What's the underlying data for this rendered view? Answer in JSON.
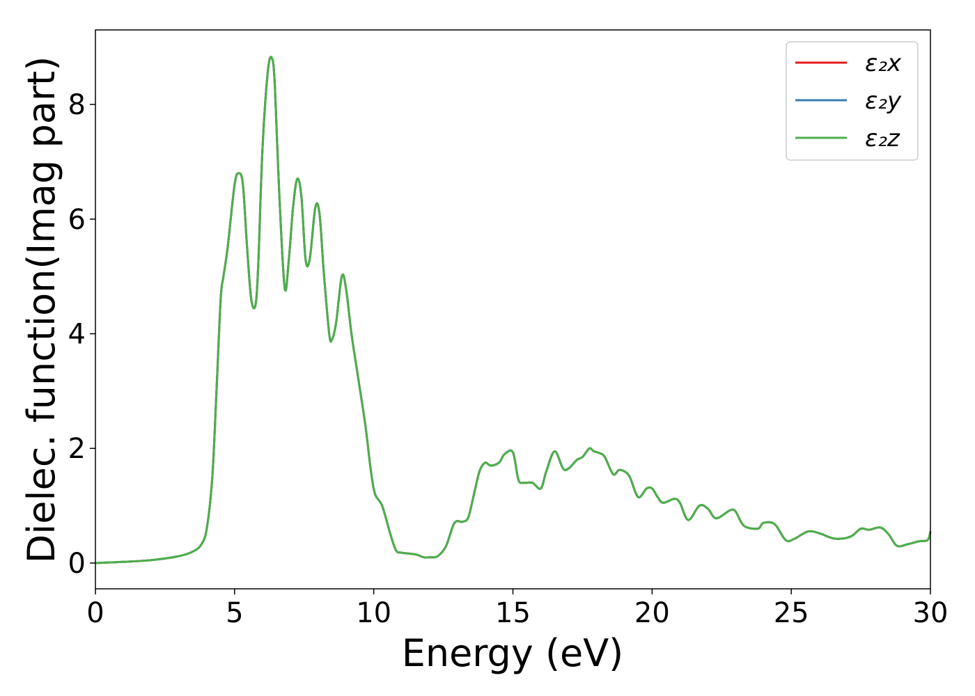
{
  "chart_data": {
    "type": "line",
    "xlabel": "Energy (eV)",
    "ylabel": "Dielec. function(Imag part)",
    "xlim": [
      0,
      30
    ],
    "ylim": [
      -0.45,
      9.3
    ],
    "xticks": [
      0,
      5,
      10,
      15,
      20,
      25,
      30
    ],
    "yticks": [
      0,
      2,
      4,
      6,
      8
    ],
    "grid": false,
    "legend": "top-right",
    "x": [
      0,
      1,
      2,
      3,
      3.5,
      3.8,
      4.0,
      4.2,
      4.35,
      4.5,
      4.6,
      4.75,
      5.0,
      5.15,
      5.3,
      5.45,
      5.6,
      5.75,
      5.85,
      6.0,
      6.2,
      6.35,
      6.45,
      6.6,
      6.8,
      6.95,
      7.1,
      7.25,
      7.4,
      7.55,
      7.7,
      7.9,
      8.05,
      8.2,
      8.4,
      8.5,
      8.65,
      8.85,
      9.0,
      9.2,
      9.45,
      9.7,
      9.9,
      10.05,
      10.3,
      10.6,
      10.8,
      11.0,
      11.5,
      11.8,
      12.0,
      12.3,
      12.6,
      12.9,
      13.2,
      13.4,
      13.6,
      13.8,
      14.0,
      14.2,
      14.5,
      14.7,
      15.0,
      15.2,
      15.4,
      15.7,
      16.0,
      16.2,
      16.5,
      16.8,
      17.0,
      17.3,
      17.5,
      17.75,
      17.9,
      18.1,
      18.3,
      18.6,
      18.8,
      19.0,
      19.2,
      19.5,
      19.8,
      20.0,
      20.2,
      20.4,
      20.8,
      21.0,
      21.3,
      21.7,
      22.0,
      22.3,
      22.8,
      23.0,
      23.3,
      23.8,
      24.0,
      24.4,
      24.8,
      25.1,
      25.6,
      26.0,
      26.5,
      26.9,
      27.2,
      27.5,
      27.8,
      28.2,
      28.5,
      28.8,
      29.2,
      29.6,
      29.9,
      30.0
    ],
    "series": [
      {
        "name": "ε₂x",
        "color": "#e41a1c",
        "values": [
          0.0,
          0.02,
          0.05,
          0.12,
          0.2,
          0.32,
          0.6,
          1.5,
          3.0,
          4.6,
          5.0,
          5.5,
          6.6,
          6.8,
          6.6,
          5.5,
          4.6,
          4.5,
          5.2,
          7.2,
          8.6,
          8.8,
          8.3,
          6.5,
          4.8,
          5.3,
          6.2,
          6.7,
          6.4,
          5.3,
          5.3,
          6.2,
          6.1,
          5.1,
          4.0,
          3.9,
          4.2,
          5.0,
          4.8,
          4.0,
          3.2,
          2.4,
          1.6,
          1.2,
          1.0,
          0.5,
          0.22,
          0.18,
          0.15,
          0.1,
          0.1,
          0.12,
          0.3,
          0.7,
          0.72,
          0.8,
          1.2,
          1.6,
          1.75,
          1.7,
          1.75,
          1.9,
          1.93,
          1.45,
          1.4,
          1.4,
          1.3,
          1.6,
          1.95,
          1.65,
          1.65,
          1.8,
          1.85,
          2.0,
          1.95,
          1.92,
          1.85,
          1.55,
          1.62,
          1.6,
          1.5,
          1.15,
          1.3,
          1.3,
          1.15,
          1.05,
          1.12,
          1.05,
          0.75,
          1.0,
          0.95,
          0.78,
          0.92,
          0.9,
          0.65,
          0.6,
          0.7,
          0.68,
          0.4,
          0.42,
          0.55,
          0.52,
          0.43,
          0.43,
          0.48,
          0.6,
          0.58,
          0.62,
          0.5,
          0.3,
          0.33,
          0.38,
          0.4,
          0.55
        ]
      },
      {
        "name": "ε₂y",
        "color": "#377eb8",
        "values": [
          0.0,
          0.02,
          0.05,
          0.12,
          0.2,
          0.32,
          0.6,
          1.5,
          3.0,
          4.6,
          5.0,
          5.5,
          6.6,
          6.8,
          6.6,
          5.5,
          4.6,
          4.5,
          5.2,
          7.2,
          8.6,
          8.8,
          8.3,
          6.5,
          4.8,
          5.3,
          6.2,
          6.7,
          6.4,
          5.3,
          5.3,
          6.2,
          6.1,
          5.1,
          4.0,
          3.9,
          4.2,
          5.0,
          4.8,
          4.0,
          3.2,
          2.4,
          1.6,
          1.2,
          1.0,
          0.5,
          0.22,
          0.18,
          0.15,
          0.1,
          0.1,
          0.12,
          0.3,
          0.7,
          0.72,
          0.8,
          1.2,
          1.6,
          1.75,
          1.7,
          1.75,
          1.9,
          1.93,
          1.45,
          1.4,
          1.4,
          1.3,
          1.6,
          1.95,
          1.65,
          1.65,
          1.8,
          1.85,
          2.0,
          1.95,
          1.92,
          1.85,
          1.55,
          1.62,
          1.6,
          1.5,
          1.15,
          1.3,
          1.3,
          1.15,
          1.05,
          1.12,
          1.05,
          0.75,
          1.0,
          0.95,
          0.78,
          0.92,
          0.9,
          0.65,
          0.6,
          0.7,
          0.68,
          0.4,
          0.42,
          0.55,
          0.52,
          0.43,
          0.43,
          0.48,
          0.6,
          0.58,
          0.62,
          0.5,
          0.3,
          0.33,
          0.38,
          0.4,
          0.55
        ]
      },
      {
        "name": "ε₂z",
        "color": "#4daf4a",
        "values": [
          0.0,
          0.02,
          0.05,
          0.12,
          0.2,
          0.32,
          0.6,
          1.5,
          3.0,
          4.6,
          5.0,
          5.5,
          6.6,
          6.8,
          6.6,
          5.5,
          4.6,
          4.5,
          5.2,
          7.2,
          8.6,
          8.8,
          8.3,
          6.5,
          4.8,
          5.3,
          6.2,
          6.7,
          6.4,
          5.3,
          5.3,
          6.2,
          6.1,
          5.1,
          4.0,
          3.9,
          4.2,
          5.0,
          4.8,
          4.0,
          3.2,
          2.4,
          1.6,
          1.2,
          1.0,
          0.5,
          0.22,
          0.18,
          0.15,
          0.1,
          0.1,
          0.12,
          0.3,
          0.7,
          0.72,
          0.8,
          1.2,
          1.6,
          1.75,
          1.7,
          1.75,
          1.9,
          1.93,
          1.45,
          1.4,
          1.4,
          1.3,
          1.6,
          1.95,
          1.65,
          1.65,
          1.8,
          1.85,
          2.0,
          1.95,
          1.92,
          1.85,
          1.55,
          1.62,
          1.6,
          1.5,
          1.15,
          1.3,
          1.3,
          1.15,
          1.05,
          1.12,
          1.05,
          0.75,
          1.0,
          0.95,
          0.78,
          0.92,
          0.9,
          0.65,
          0.6,
          0.7,
          0.68,
          0.4,
          0.42,
          0.55,
          0.52,
          0.43,
          0.43,
          0.48,
          0.6,
          0.58,
          0.62,
          0.5,
          0.3,
          0.33,
          0.38,
          0.4,
          0.55
        ]
      }
    ]
  }
}
